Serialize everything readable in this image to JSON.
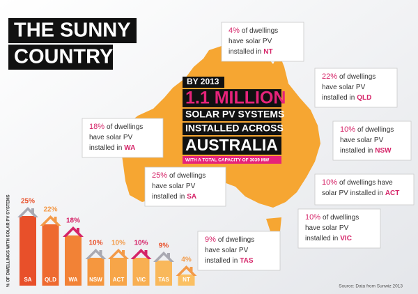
{
  "chart_data": {
    "type": "bar",
    "title": [
      "THE SUNNY",
      "COUNTRY"
    ],
    "y_label": "% OF DWELLINGS WITH SOLAR PV SYSTEMS",
    "categories": [
      "SA",
      "QLD",
      "WA",
      "NSW",
      "ACT",
      "VIC",
      "TAS",
      "NT"
    ],
    "values": [
      25,
      22,
      18,
      10,
      10,
      10,
      9,
      4
    ],
    "value_labels": [
      "25%",
      "22%",
      "18%",
      "10%",
      "10%",
      "10%",
      "9%",
      "4%"
    ],
    "colors": [
      "#e8502a",
      "#ee6a30",
      "#f28236",
      "#f5973f",
      "#f7a548",
      "#f8af52",
      "#f9b85b",
      "#fbc063"
    ],
    "roof_colors": [
      "#a9a9b2",
      "#f39a48",
      "#d52468",
      "#a9a9b2",
      "#f39a48",
      "#d52468",
      "#a9a9b2",
      "#f39a48"
    ],
    "headline": {
      "year": "BY 2013",
      "big": "1.1 MILLION",
      "line1": "SOLAR PV SYSTEMS",
      "line2": "INSTALLED ACROSS",
      "country": "AUSTRALIA",
      "capacity": "WITH A TOTAL CAPACITY OF 3039 MW"
    },
    "callouts": [
      {
        "value_text": "4%",
        "lines": [
          "of dwellings",
          "have solar PV",
          "installed in"
        ],
        "state": "NT"
      },
      {
        "value_text": "22%",
        "lines": [
          "of dwellings",
          "have solar PV",
          "installed in"
        ],
        "state": "QLD"
      },
      {
        "value_text": "18%",
        "lines": [
          "of dwellings",
          "have solar PV",
          "installed in"
        ],
        "state": "WA"
      },
      {
        "value_text": "10%",
        "lines": [
          "of dwellings",
          "have solar PV",
          "installed in"
        ],
        "state": "NSW"
      },
      {
        "value_text": "25%",
        "lines": [
          "of dwellings",
          "have solar PV",
          "installed in"
        ],
        "state": "SA"
      },
      {
        "value_text": "10%",
        "lines": [
          "of dwellings have",
          "solar PV installed in"
        ],
        "state": "ACT"
      },
      {
        "value_text": "10%",
        "lines": [
          "of dwellings",
          "have solar PV",
          "installed in"
        ],
        "state": "VIC"
      },
      {
        "value_text": "9%",
        "lines": [
          "of dwellings",
          "have solar PV",
          "installed in"
        ],
        "state": "TAS"
      }
    ],
    "source": "Source: Data from Sunwiz 2013"
  }
}
